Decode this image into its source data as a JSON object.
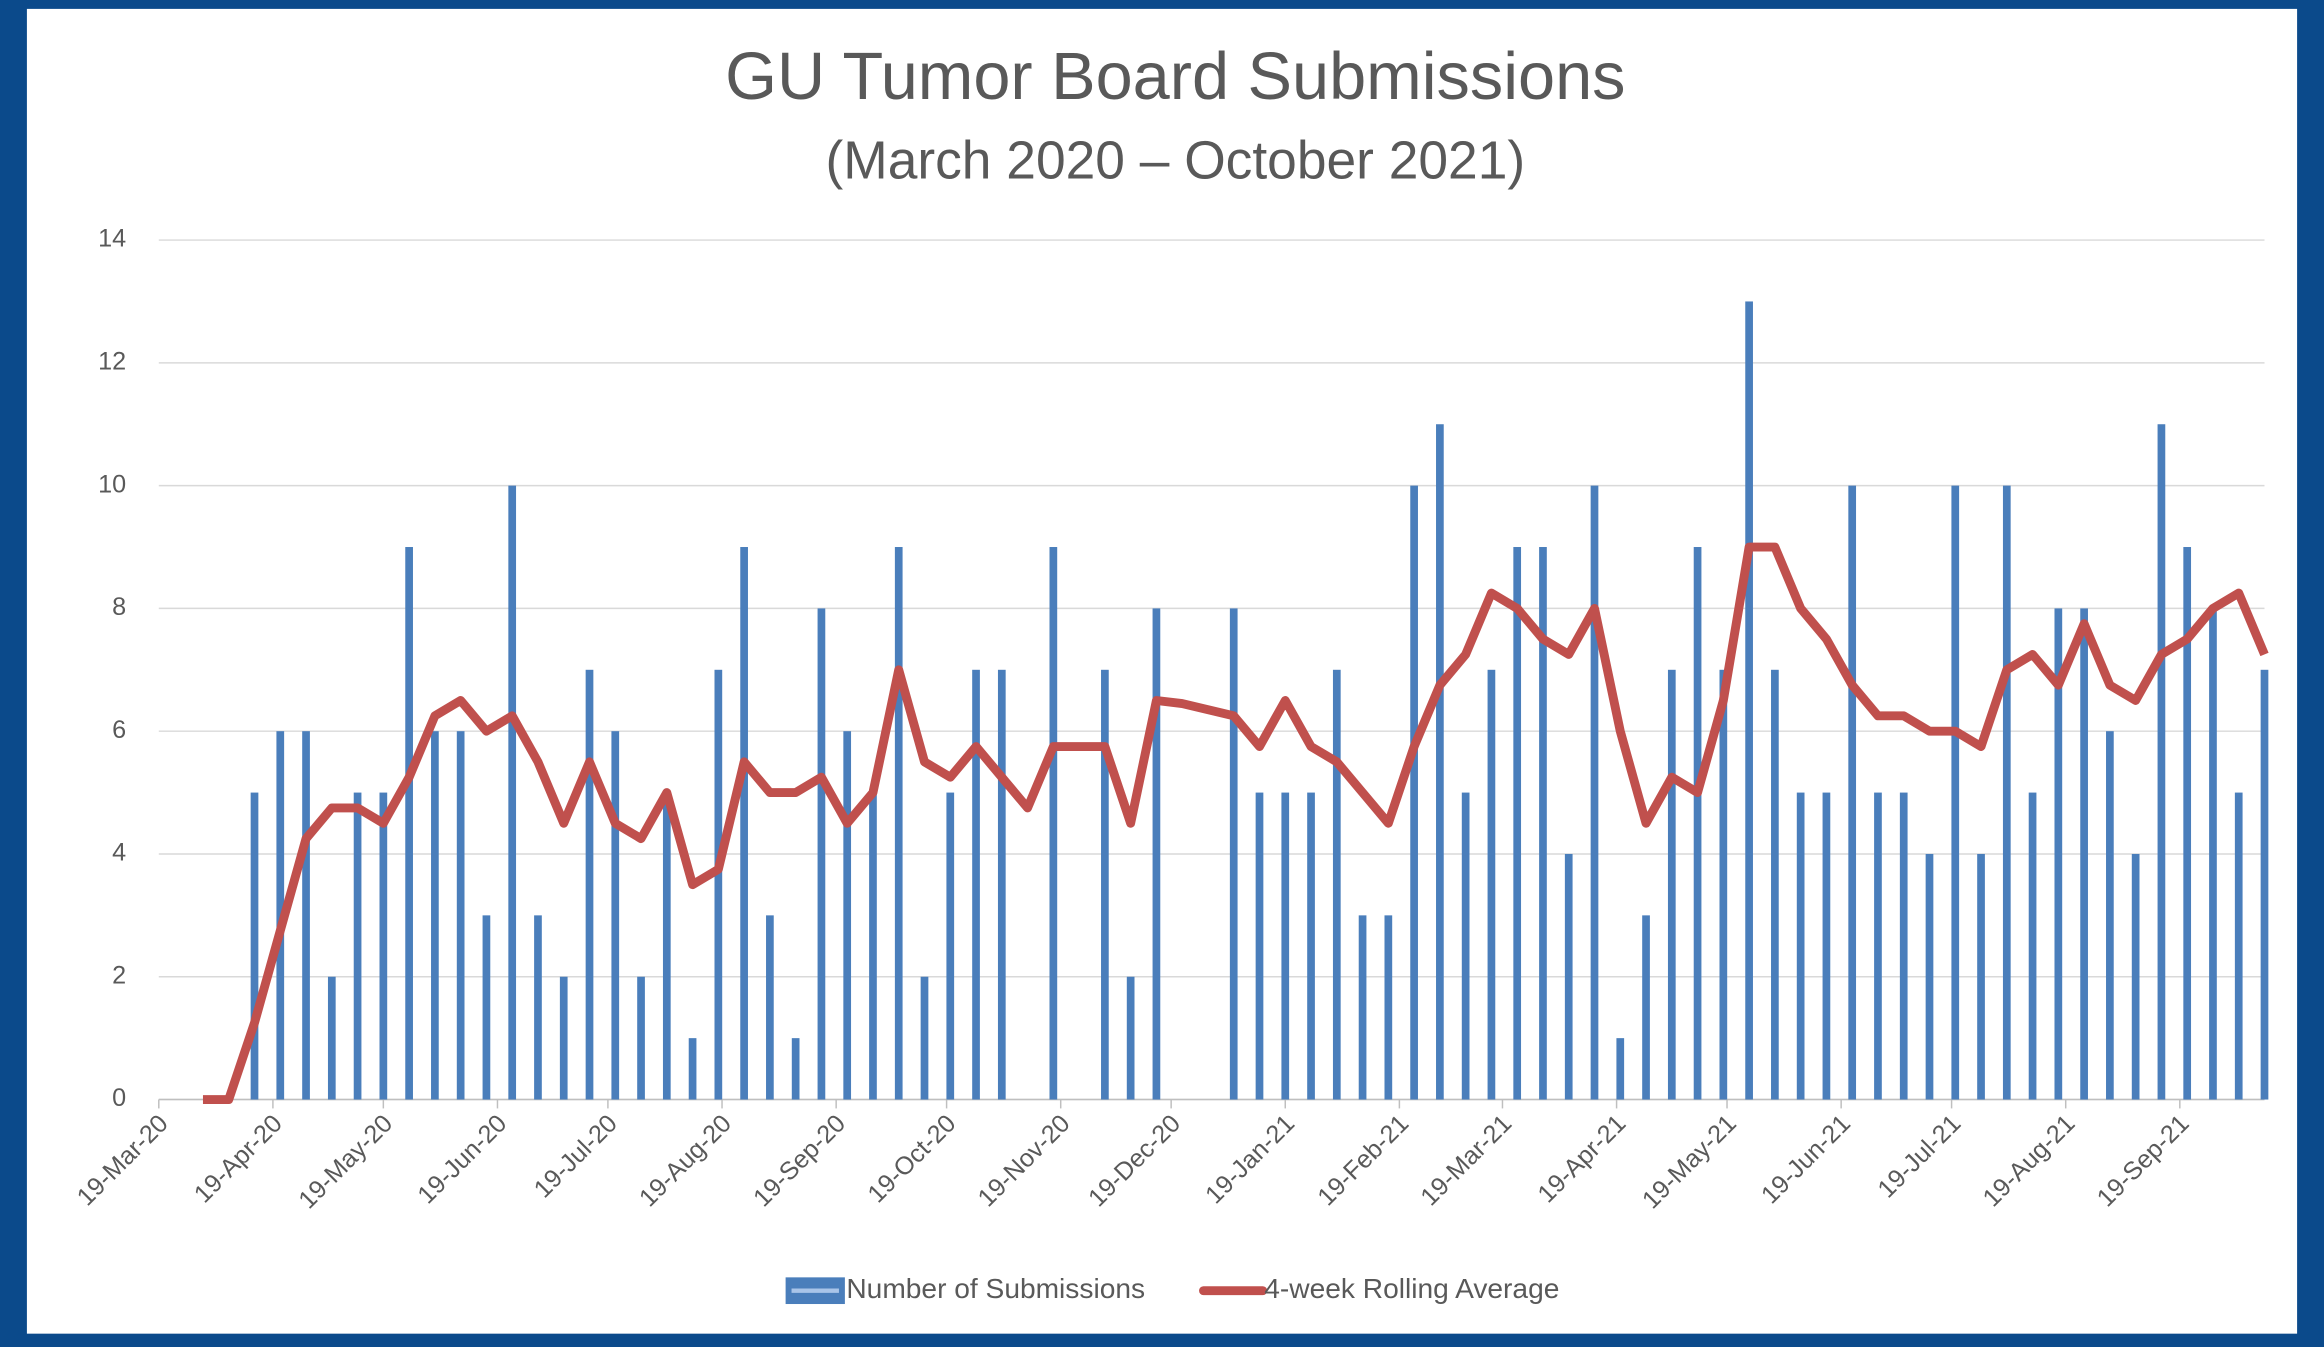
{
  "chart_data": {
    "type": "bar-line",
    "title": "GU Tumor Board Submissions",
    "subtitle": "(March 2020 – October 2021)",
    "x": [
      "2020-03-31",
      "2020-04-07",
      "2020-04-14",
      "2020-04-21",
      "2020-04-28",
      "2020-05-05",
      "2020-05-12",
      "2020-05-19",
      "2020-05-26",
      "2020-06-02",
      "2020-06-09",
      "2020-06-16",
      "2020-06-23",
      "2020-06-30",
      "2020-07-07",
      "2020-07-14",
      "2020-07-21",
      "2020-07-28",
      "2020-08-04",
      "2020-08-11",
      "2020-08-18",
      "2020-08-25",
      "2020-09-01",
      "2020-09-08",
      "2020-09-15",
      "2020-09-22",
      "2020-09-29",
      "2020-10-06",
      "2020-10-13",
      "2020-10-20",
      "2020-10-27",
      "2020-11-03",
      "2020-11-10",
      "2020-11-17",
      "2020-11-24",
      "2020-12-01",
      "2020-12-08",
      "2020-12-15",
      "2020-12-22",
      "2020-12-29",
      "2021-01-05",
      "2021-01-12",
      "2021-01-19",
      "2021-01-26",
      "2021-02-02",
      "2021-02-09",
      "2021-02-16",
      "2021-02-23",
      "2021-03-02",
      "2021-03-09",
      "2021-03-16",
      "2021-03-23",
      "2021-03-30",
      "2021-04-06",
      "2021-04-13",
      "2021-04-20",
      "2021-04-27",
      "2021-05-04",
      "2021-05-11",
      "2021-05-18",
      "2021-05-25",
      "2021-06-01",
      "2021-06-08",
      "2021-06-15",
      "2021-06-22",
      "2021-06-29",
      "2021-07-06",
      "2021-07-13",
      "2021-07-20",
      "2021-07-27",
      "2021-08-03",
      "2021-08-10",
      "2021-08-17",
      "2021-08-24",
      "2021-08-31",
      "2021-09-07",
      "2021-09-14",
      "2021-09-21",
      "2021-09-28",
      "2021-10-05",
      "2021-10-12"
    ],
    "series": [
      {
        "name": "Number of Submissions",
        "kind": "bar",
        "color": "#4a7ebb",
        "values": [
          0,
          0,
          5,
          6,
          6,
          2,
          5,
          5,
          9,
          6,
          6,
          3,
          10,
          3,
          2,
          7,
          6,
          2,
          5,
          1,
          7,
          9,
          3,
          1,
          8,
          6,
          5,
          9,
          2,
          5,
          7,
          7,
          0,
          9,
          0,
          7,
          2,
          8,
          0,
          0,
          8,
          5,
          5,
          5,
          7,
          3,
          3,
          10,
          11,
          5,
          7,
          9,
          9,
          4,
          10,
          1,
          3,
          7,
          9,
          7,
          13,
          7,
          5,
          5,
          10,
          5,
          5,
          4,
          10,
          4,
          10,
          5,
          8,
          8,
          6,
          4,
          11,
          9,
          8,
          5,
          7
        ]
      },
      {
        "name": "4-week Rolling Average",
        "kind": "line",
        "color": "#c0504d",
        "values": [
          0,
          0,
          1.25,
          2.75,
          4.25,
          4.75,
          4.75,
          4.5,
          5.25,
          6.25,
          6.5,
          6,
          6.25,
          5.5,
          4.5,
          5.5,
          4.5,
          4.25,
          5,
          3.5,
          3.75,
          5.5,
          5,
          5,
          5.25,
          4.5,
          5,
          7,
          5.5,
          5.25,
          5.75,
          5.25,
          4.75,
          5.75,
          5.75,
          5.75,
          4.5,
          6.5,
          6.45,
          6.35,
          6.25,
          5.75,
          6.5,
          5.75,
          5.5,
          5,
          4.5,
          5.75,
          6.75,
          7.25,
          8.25,
          8,
          7.5,
          7.25,
          8,
          6,
          4.5,
          5.25,
          5,
          6.5,
          9,
          9,
          8,
          7.5,
          6.75,
          6.25,
          6.25,
          6,
          6,
          5.75,
          7,
          7.25,
          6.75,
          7.75,
          6.75,
          6.5,
          7.25,
          7.5,
          8,
          8.25,
          7.25
        ]
      }
    ],
    "xlim": [
      "2020-03-19",
      "2021-10-12"
    ],
    "xticks": [
      {
        "value": "2020-03-19",
        "label": "19-Mar-20"
      },
      {
        "value": "2020-04-19",
        "label": "19-Apr-20"
      },
      {
        "value": "2020-05-19",
        "label": "19-May-20"
      },
      {
        "value": "2020-06-19",
        "label": "19-Jun-20"
      },
      {
        "value": "2020-07-19",
        "label": "19-Jul-20"
      },
      {
        "value": "2020-08-19",
        "label": "19-Aug-20"
      },
      {
        "value": "2020-09-19",
        "label": "19-Sep-20"
      },
      {
        "value": "2020-10-19",
        "label": "19-Oct-20"
      },
      {
        "value": "2020-11-19",
        "label": "19-Nov-20"
      },
      {
        "value": "2020-12-19",
        "label": "19-Dec-20"
      },
      {
        "value": "2021-01-19",
        "label": "19-Jan-21"
      },
      {
        "value": "2021-02-19",
        "label": "19-Feb-21"
      },
      {
        "value": "2021-03-19",
        "label": "19-Mar-21"
      },
      {
        "value": "2021-04-19",
        "label": "19-Apr-21"
      },
      {
        "value": "2021-05-19",
        "label": "19-May-21"
      },
      {
        "value": "2021-06-19",
        "label": "19-Jun-21"
      },
      {
        "value": "2021-07-19",
        "label": "19-Jul-21"
      },
      {
        "value": "2021-08-19",
        "label": "19-Aug-21"
      },
      {
        "value": "2021-09-19",
        "label": "19-Sep-21"
      }
    ],
    "ylim": [
      0,
      14
    ],
    "yticks": [
      0,
      2,
      4,
      6,
      8,
      10,
      12,
      14
    ],
    "grid": true,
    "legend": "bottom"
  }
}
